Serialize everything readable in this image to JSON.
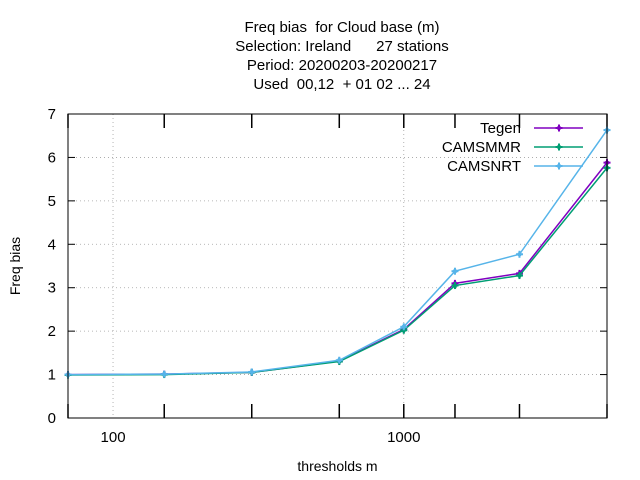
{
  "chart_data": {
    "type": "line",
    "title_lines": [
      "Freq bias  for Cloud base (m)",
      "Selection: Ireland      27 stations",
      "Period: 20200203-20200217",
      "Used  00,12  + 01 02 ... 24"
    ],
    "xlabel": "thresholds m",
    "ylabel": "Freq bias",
    "x_scale": "log",
    "xlim": [
      70,
      5000
    ],
    "ylim": [
      0,
      7
    ],
    "x_tick_labels": [
      {
        "value": 100,
        "label": "100"
      },
      {
        "value": 1000,
        "label": "1000"
      }
    ],
    "y_ticks": [
      0,
      1,
      2,
      3,
      4,
      5,
      6,
      7
    ],
    "grid": true,
    "legend_position": "top-right",
    "x": [
      70,
      150,
      300,
      600,
      1000,
      1500,
      2500,
      5000
    ],
    "series": [
      {
        "name": "Tegen",
        "color": "#8000c0",
        "values": [
          1.0,
          1.01,
          1.05,
          1.31,
          2.04,
          3.1,
          3.33,
          5.88
        ]
      },
      {
        "name": "CAMSMMR",
        "color": "#009e73",
        "values": [
          0.99,
          1.0,
          1.05,
          1.3,
          2.02,
          3.05,
          3.28,
          5.76
        ]
      },
      {
        "name": "CAMSNRT",
        "color": "#56b4e9",
        "values": [
          1.0,
          1.01,
          1.06,
          1.33,
          2.1,
          3.38,
          3.77,
          6.63
        ]
      }
    ]
  }
}
